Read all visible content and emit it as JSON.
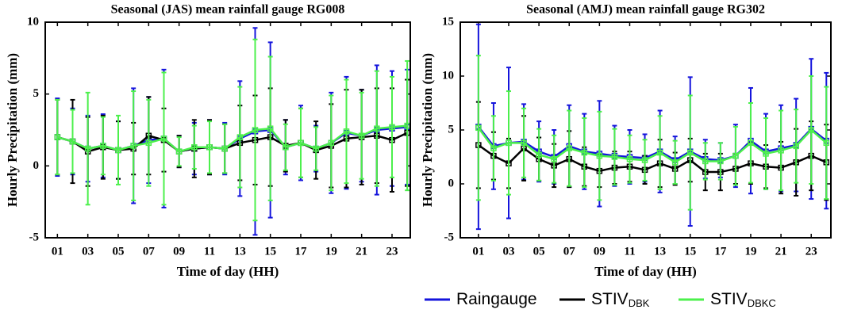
{
  "chart_data": [
    {
      "type": "errorbar-line",
      "title": "Seasonal (JAS) mean rainfall gauge RG008",
      "x_label": "Time of day (HH)",
      "y_label": "Hourly Precipitation (mm)",
      "x": [
        1,
        2,
        3,
        4,
        5,
        6,
        7,
        8,
        9,
        10,
        11,
        12,
        13,
        14,
        15,
        16,
        17,
        18,
        19,
        20,
        21,
        22,
        23,
        24
      ],
      "xlim": [
        0.2,
        24.2
      ],
      "ylim": [
        -5,
        10
      ],
      "xticks": [
        {
          "value": 1,
          "label": "01"
        },
        {
          "value": 3,
          "label": "03"
        },
        {
          "value": 5,
          "label": "05"
        },
        {
          "value": 7,
          "label": "07"
        },
        {
          "value": 9,
          "label": "09"
        },
        11,
        13,
        15,
        17,
        19,
        21,
        23
      ],
      "yticks": [
        -5,
        0,
        5,
        10
      ],
      "series": [
        {
          "name": "Raingauge",
          "color": "#1414dc",
          "values": [
            2.0,
            1.7,
            1.2,
            1.4,
            1.1,
            1.4,
            1.8,
            1.9,
            1.0,
            1.2,
            1.3,
            1.2,
            1.9,
            2.4,
            2.5,
            1.3,
            1.6,
            1.2,
            1.6,
            2.3,
            2.1,
            2.5,
            2.6,
            2.7
          ],
          "errors": [
            2.7,
            2.3,
            2.3,
            2.2,
            2.0,
            4.0,
            3.0,
            4.8,
            1.1,
            1.8,
            1.9,
            1.8,
            4.0,
            7.2,
            6.1,
            1.9,
            2.6,
            1.6,
            3.5,
            3.9,
            3.2,
            4.5,
            4.0,
            4.0
          ]
        },
        {
          "name": "STIV",
          "name_sub": "DBK",
          "color": "#000000",
          "values": [
            2.0,
            1.7,
            1.0,
            1.3,
            1.1,
            1.2,
            2.1,
            1.8,
            1.0,
            1.2,
            1.3,
            1.2,
            1.6,
            1.8,
            2.0,
            1.4,
            1.6,
            1.1,
            1.4,
            1.9,
            2.0,
            2.1,
            1.8,
            2.3
          ],
          "errors": [
            2.6,
            2.9,
            2.4,
            2.2,
            2.0,
            1.8,
            2.7,
            2.2,
            1.1,
            2.0,
            1.9,
            1.7,
            2.6,
            3.1,
            3.4,
            1.8,
            2.4,
            2.0,
            2.9,
            3.4,
            3.3,
            3.3,
            3.6,
            3.7
          ]
        },
        {
          "name": "STIV",
          "name_sub": "DBKC",
          "color": "#4cf04c",
          "values": [
            2.0,
            1.7,
            1.2,
            1.4,
            1.1,
            1.4,
            1.6,
            1.9,
            1.0,
            1.3,
            1.3,
            1.2,
            2.0,
            2.5,
            2.6,
            1.3,
            1.6,
            1.2,
            1.6,
            2.4,
            2.1,
            2.6,
            2.7,
            2.8
          ],
          "errors": [
            2.6,
            2.2,
            3.9,
            2.0,
            2.4,
            3.8,
            3.0,
            4.6,
            1.0,
            1.5,
            1.8,
            1.7,
            3.5,
            6.3,
            5.0,
            1.6,
            2.4,
            1.5,
            3.3,
            3.6,
            3.0,
            4.0,
            3.5,
            4.5
          ]
        }
      ]
    },
    {
      "type": "errorbar-line",
      "title": "Seasonal (AMJ) mean rainfall gauge RG302",
      "x_label": "Time of day (HH)",
      "y_label": "Hourly Precipitation (mm)",
      "x": [
        1,
        2,
        3,
        4,
        5,
        6,
        7,
        8,
        9,
        10,
        11,
        12,
        13,
        14,
        15,
        16,
        17,
        18,
        19,
        20,
        21,
        22,
        23,
        24
      ],
      "xlim": [
        -0.2,
        24.3
      ],
      "ylim": [
        -5,
        15
      ],
      "xticks": [
        {
          "value": 1,
          "label": "01"
        },
        {
          "value": 3,
          "label": "03"
        },
        {
          "value": 5,
          "label": "05"
        },
        {
          "value": 7,
          "label": "07"
        },
        {
          "value": 9,
          "label": "09"
        },
        11,
        13,
        15,
        17,
        19,
        21,
        23
      ],
      "yticks": [
        -5,
        0,
        5,
        10,
        15
      ],
      "series": [
        {
          "name": "Raingauge",
          "color": "#1414dc",
          "values": [
            5.3,
            3.5,
            3.8,
            3.9,
            3.0,
            2.5,
            3.5,
            3.0,
            2.8,
            2.6,
            2.5,
            2.4,
            3.0,
            2.2,
            3.0,
            2.3,
            2.2,
            2.6,
            4.0,
            3.0,
            3.3,
            3.6,
            5.1,
            4.0
          ],
          "errors": [
            9.5,
            4.0,
            7.0,
            3.5,
            2.8,
            2.5,
            3.8,
            3.5,
            4.9,
            2.8,
            2.5,
            2.2,
            3.8,
            2.2,
            6.9,
            1.8,
            1.6,
            2.9,
            4.9,
            3.5,
            4.0,
            4.3,
            6.5,
            6.3
          ]
        },
        {
          "name": "STIV",
          "name_sub": "DBK",
          "color": "#000000",
          "values": [
            3.6,
            2.6,
            1.9,
            3.3,
            2.3,
            1.7,
            2.3,
            1.6,
            1.2,
            1.5,
            1.6,
            1.3,
            1.9,
            1.4,
            2.2,
            1.1,
            1.1,
            1.4,
            1.9,
            1.6,
            1.5,
            2.0,
            2.6,
            2.0
          ],
          "errors": [
            4.0,
            2.2,
            2.3,
            3.0,
            2.0,
            2.0,
            2.6,
            1.8,
            1.5,
            1.5,
            1.4,
            1.3,
            2.2,
            1.5,
            2.0,
            1.7,
            1.7,
            1.4,
            1.9,
            2.0,
            2.4,
            3.1,
            3.2,
            3.5
          ]
        },
        {
          "name": "STIV",
          "name_sub": "DBKC",
          "color": "#4cf04c",
          "values": [
            5.2,
            3.3,
            3.8,
            3.8,
            2.7,
            2.3,
            3.3,
            2.9,
            2.6,
            2.5,
            2.3,
            2.2,
            2.9,
            2.0,
            2.9,
            2.1,
            2.1,
            2.6,
            3.8,
            2.8,
            3.1,
            3.5,
            5.0,
            3.8
          ],
          "errors": [
            6.7,
            3.0,
            4.8,
            3.2,
            2.4,
            2.2,
            3.5,
            3.2,
            4.1,
            2.6,
            2.2,
            1.9,
            3.4,
            2.0,
            5.3,
            1.7,
            1.7,
            2.7,
            3.7,
            3.3,
            3.7,
            3.4,
            5.0,
            5.2
          ]
        }
      ]
    }
  ]
}
